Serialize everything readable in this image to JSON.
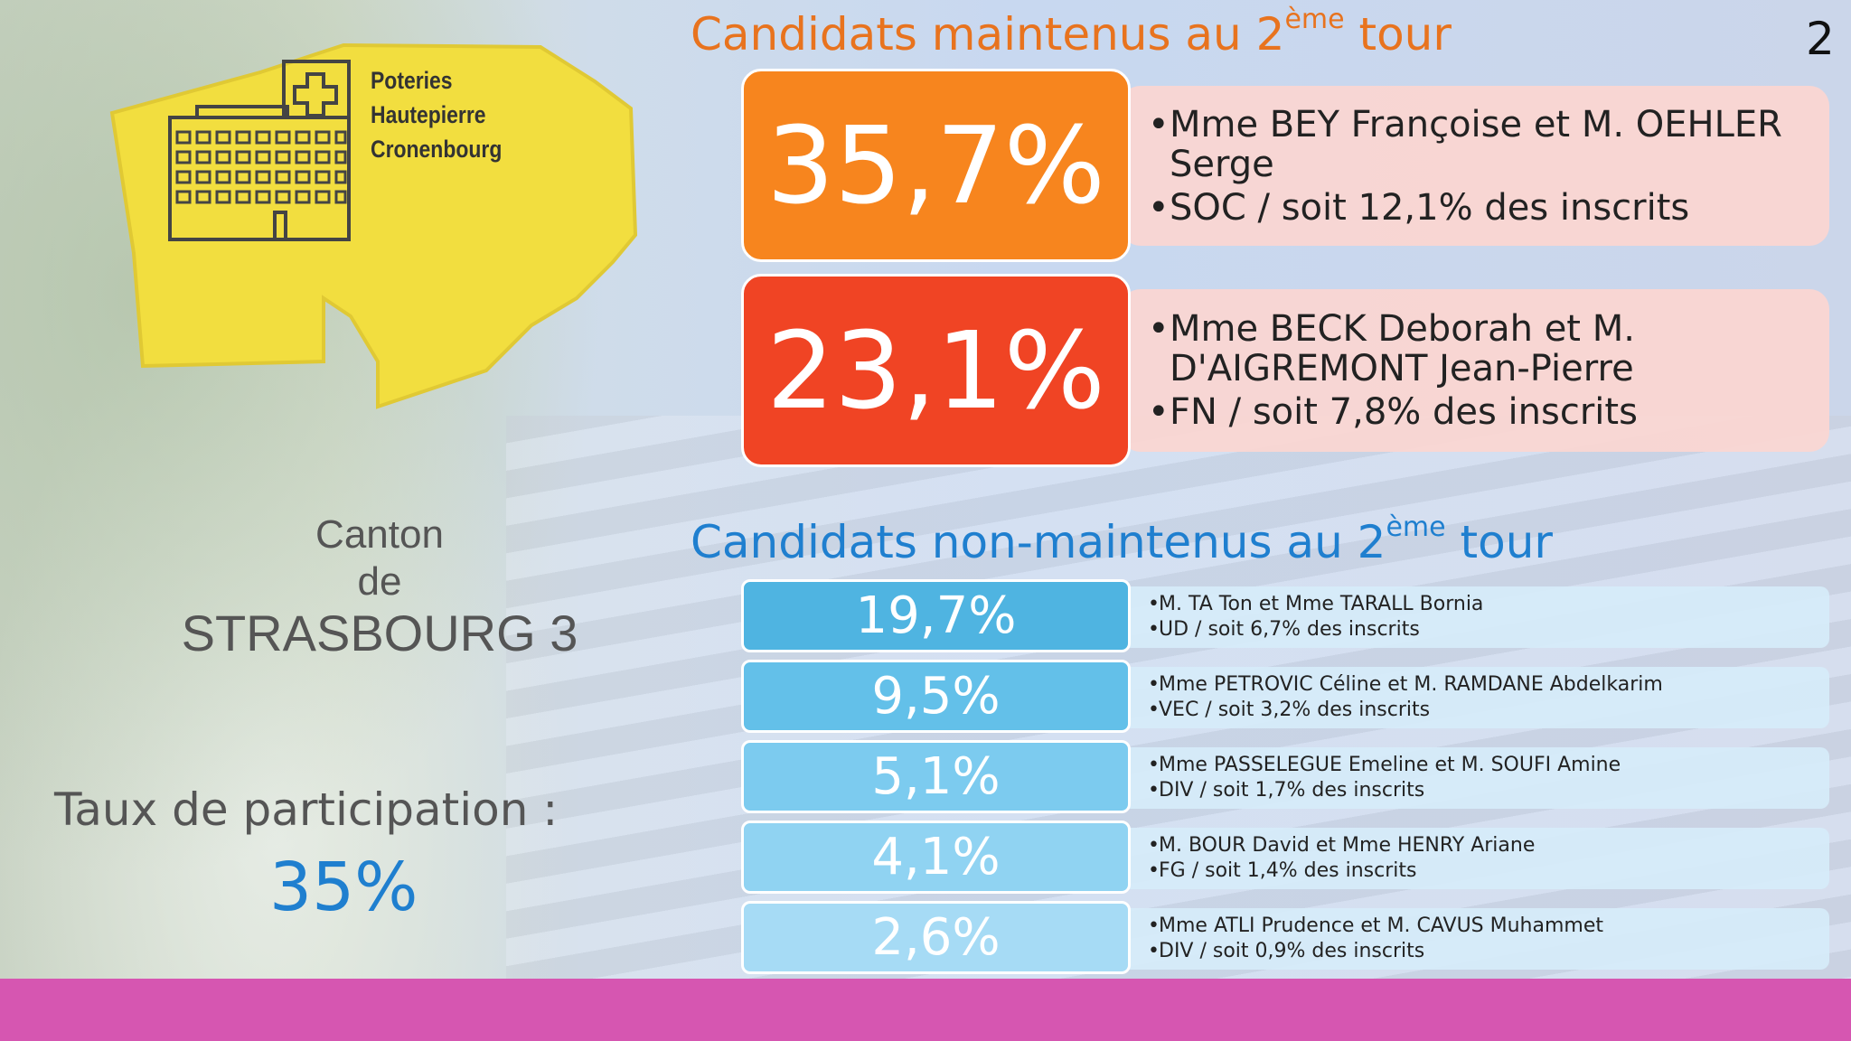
{
  "page_number": "2",
  "map": {
    "labels": [
      "Poteries",
      "Hautepierre",
      "Cronenbourg"
    ],
    "icon": "hospital-building-icon",
    "color": "#f2de3f"
  },
  "canton": {
    "line1": "Canton",
    "line2": "de",
    "line3": "STRASBOURG 3"
  },
  "participation": {
    "label": "Taux de participation :",
    "value": "35%"
  },
  "maintained": {
    "title_pre": "Candidats maintenus au 2",
    "title_sup": "ème",
    "title_post": " tour",
    "color": "#e8731e",
    "items": [
      {
        "pct": "35,7%",
        "line1": "Mme BEY Françoise et M. OEHLER Serge",
        "line2": "SOC / soit 12,1% des inscrits",
        "color": "#f7851e"
      },
      {
        "pct": "23,1%",
        "line1": "Mme BECK Deborah et M. D'AIGREMONT Jean-Pierre",
        "line2": "FN / soit 7,8% des inscrits",
        "color": "#f04424"
      }
    ]
  },
  "non_maintained": {
    "title_pre": "Candidats non-maintenus au 2",
    "title_sup": "ème",
    "title_post": " tour",
    "color": "#1f7fcf",
    "items": [
      {
        "pct": "19,7%",
        "line1": "M. TA Ton et Mme TARALL Bornia",
        "line2": "UD / soit 6,7% des inscrits",
        "color": "#4fb4e1"
      },
      {
        "pct": "9,5%",
        "line1": "Mme PETROVIC Céline et M. RAMDANE Abdelkarim",
        "line2": "VEC / soit 3,2% des inscrits",
        "color": "#63c0e9"
      },
      {
        "pct": "5,1%",
        "line1": "Mme PASSELEGUE Emeline et M. SOUFI Amine",
        "line2": "DIV / soit 1,7% des inscrits",
        "color": "#7ccbef"
      },
      {
        "pct": "4,1%",
        "line1": "M. BOUR David et Mme HENRY Ariane",
        "line2": "FG / soit 1,4% des inscrits",
        "color": "#90d3f2"
      },
      {
        "pct": "2,6%",
        "line1": "Mme ATLI Prudence et M. CAVUS Muhammet",
        "line2": "DIV / soit 0,9% des inscrits",
        "color": "#a6dbf5"
      }
    ]
  },
  "footer_color": "#d656b1"
}
